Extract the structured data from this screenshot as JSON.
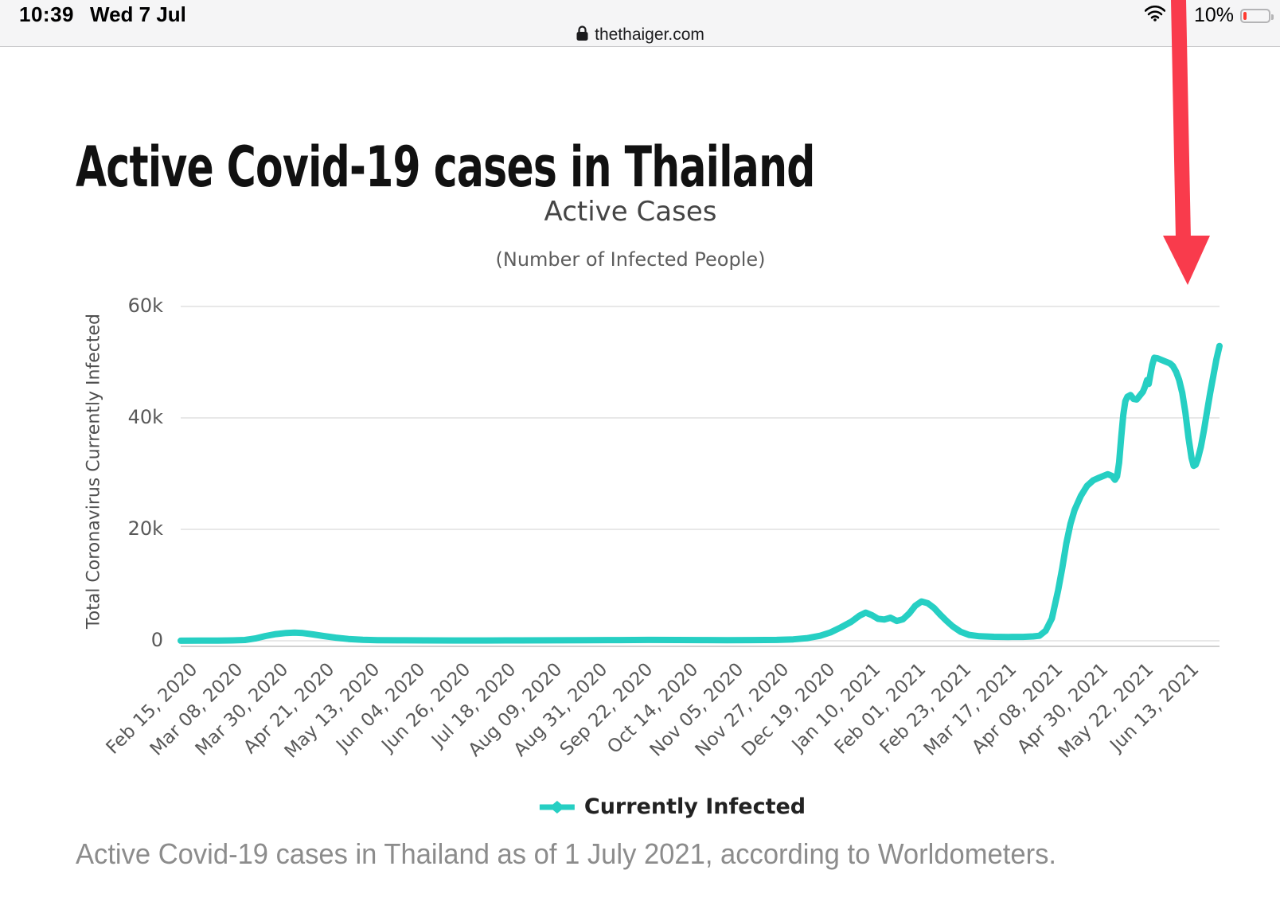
{
  "status_bar": {
    "time": "10:39",
    "date": "Wed 7 Jul",
    "battery_percent": "10%"
  },
  "browser": {
    "domain": "thethaiger.com"
  },
  "article": {
    "heading": "Active Covid-19 cases in Thailand",
    "caption": "Active Covid-19 cases in Thailand as of 1 July 2021, according to Worldometers."
  },
  "chart_data": {
    "type": "line",
    "title": "Active Cases",
    "subtitle": "(Number of Infected People)",
    "ylabel": "Total Coronavirus Currently Infected",
    "xlabel": "",
    "ylim": [
      0,
      60000
    ],
    "grid": "horizontal",
    "legend_position": "bottom",
    "yticks": [
      {
        "v": 0,
        "label": "0"
      },
      {
        "v": 20000,
        "label": "20k"
      },
      {
        "v": 40000,
        "label": "40k"
      },
      {
        "v": 60000,
        "label": "60k"
      }
    ],
    "x_tick_interval_days": 22,
    "x_total_days": 502,
    "x_tick_labels": [
      "Feb 15, 2020",
      "Mar 08, 2020",
      "Mar 30, 2020",
      "Apr 21, 2020",
      "May 13, 2020",
      "Jun 04, 2020",
      "Jun 26, 2020",
      "Jul 18, 2020",
      "Aug 09, 2020",
      "Aug 31, 2020",
      "Sep 22, 2020",
      "Oct 14, 2020",
      "Nov 05, 2020",
      "Nov 27, 2020",
      "Dec 19, 2020",
      "Jan 10, 2021",
      "Feb 01, 2021",
      "Feb 23, 2021",
      "Mar 17, 2021",
      "Apr 08, 2021",
      "Apr 30, 2021",
      "May 22, 2021",
      "Jun 13, 2021"
    ],
    "series": [
      {
        "name": "Currently Infected",
        "color": "#26CFC3",
        "marker": "diamond",
        "points": [
          [
            0,
            20
          ],
          [
            10,
            28
          ],
          [
            18,
            35
          ],
          [
            25,
            70
          ],
          [
            31,
            150
          ],
          [
            36,
            420
          ],
          [
            41,
            850
          ],
          [
            46,
            1200
          ],
          [
            51,
            1400
          ],
          [
            55,
            1460
          ],
          [
            59,
            1380
          ],
          [
            64,
            1150
          ],
          [
            69,
            850
          ],
          [
            75,
            560
          ],
          [
            81,
            330
          ],
          [
            88,
            190
          ],
          [
            95,
            120
          ],
          [
            105,
            85
          ],
          [
            118,
            65
          ],
          [
            132,
            58
          ],
          [
            148,
            60
          ],
          [
            164,
            70
          ],
          [
            180,
            85
          ],
          [
            196,
            100
          ],
          [
            212,
            130
          ],
          [
            226,
            158
          ],
          [
            240,
            150
          ],
          [
            252,
            132
          ],
          [
            264,
            120
          ],
          [
            276,
            130
          ],
          [
            288,
            160
          ],
          [
            296,
            260
          ],
          [
            303,
            480
          ],
          [
            309,
            900
          ],
          [
            314,
            1500
          ],
          [
            319,
            2400
          ],
          [
            324,
            3400
          ],
          [
            328,
            4500
          ],
          [
            331,
            5050
          ],
          [
            334,
            4600
          ],
          [
            337,
            3950
          ],
          [
            340,
            3820
          ],
          [
            343,
            4150
          ],
          [
            346,
            3550
          ],
          [
            349,
            3850
          ],
          [
            352,
            4900
          ],
          [
            355,
            6300
          ],
          [
            358,
            7050
          ],
          [
            361,
            6750
          ],
          [
            364,
            5900
          ],
          [
            367,
            4700
          ],
          [
            370,
            3600
          ],
          [
            373,
            2600
          ],
          [
            377,
            1600
          ],
          [
            381,
            1050
          ],
          [
            386,
            820
          ],
          [
            393,
            720
          ],
          [
            400,
            680
          ],
          [
            407,
            700
          ],
          [
            412,
            780
          ],
          [
            415,
            900
          ],
          [
            418,
            1800
          ],
          [
            421,
            4000
          ],
          [
            424,
            9000
          ],
          [
            426,
            13000
          ],
          [
            428,
            17500
          ],
          [
            430,
            21000
          ],
          [
            432,
            23500
          ],
          [
            435,
            26000
          ],
          [
            438,
            27800
          ],
          [
            441,
            28800
          ],
          [
            444,
            29300
          ],
          [
            446,
            29600
          ],
          [
            448,
            29900
          ],
          [
            450,
            29600
          ],
          [
            451.5,
            28900
          ],
          [
            452.5,
            29500
          ],
          [
            453.5,
            32000
          ],
          [
            454.5,
            36500
          ],
          [
            455.5,
            40500
          ],
          [
            456.5,
            43000
          ],
          [
            457.5,
            43800
          ],
          [
            459,
            44100
          ],
          [
            460.5,
            43400
          ],
          [
            462,
            43300
          ],
          [
            463.5,
            44000
          ],
          [
            465,
            44700
          ],
          [
            466,
            45600
          ],
          [
            467,
            46800
          ],
          [
            467.8,
            46100
          ],
          [
            468.6,
            47800
          ],
          [
            469.5,
            49500
          ],
          [
            470.5,
            50800
          ],
          [
            472,
            50700
          ],
          [
            474,
            50400
          ],
          [
            476,
            50100
          ],
          [
            478,
            49800
          ],
          [
            479.5,
            49300
          ],
          [
            481,
            48300
          ],
          [
            482.5,
            46800
          ],
          [
            484,
            44500
          ],
          [
            485.5,
            41000
          ],
          [
            487,
            36500
          ],
          [
            488.5,
            32800
          ],
          [
            489.5,
            31400
          ],
          [
            490.5,
            31600
          ],
          [
            491.5,
            32600
          ],
          [
            493,
            34800
          ],
          [
            494.5,
            37800
          ],
          [
            496,
            41200
          ],
          [
            497.5,
            44500
          ],
          [
            499,
            47500
          ],
          [
            500.5,
            50500
          ],
          [
            502,
            52900
          ]
        ]
      }
    ],
    "annotation": {
      "shape": "red-down-arrow",
      "color": "#F93B4C"
    }
  },
  "colors": {
    "chrome_bg": "#f5f5f6",
    "grid": "#e8e8e8",
    "axis_line": "#d0d0d0",
    "line": "#26CFC3",
    "arrow": "#F93B4C",
    "battery_low": "#ff3b30"
  }
}
